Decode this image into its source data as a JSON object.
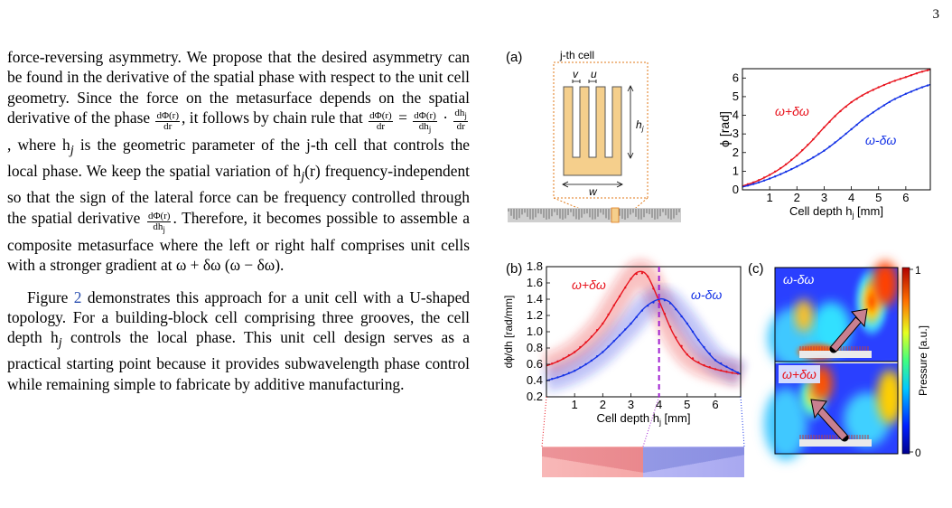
{
  "page": {
    "number": "3"
  },
  "body_text": {
    "p1_a": "force-reversing asymmetry. We propose that the desired asymmetry can be found in the derivative of the spatial phase with respect to the unit cell geometry. Since the force on the metasurface depends on the spatial derivative of the phase ",
    "p1_frac1_num": "dΦ(r)",
    "p1_frac1_den": "dr",
    "p1_b": ", it follows by chain rule that ",
    "p1_frac2_num": "dΦ(r)",
    "p1_frac2_den": "dr",
    "p1_c": " = ",
    "p1_frac3_num": "dΦ(r)",
    "p1_frac3_den": "dh",
    "p1_d": " · ",
    "p1_frac4_num": "dh",
    "p1_frac4_den": "dr",
    "p1_e": ", where h",
    "p1_f": " is the geometric parameter of the j-th cell that controls the local phase. We keep the spatial variation of h",
    "p1_g": "(r) frequency-independent so that the sign of the lateral force can be frequency controlled through the spatial derivative ",
    "p1_frac5_num": "dΦ(r)",
    "p1_frac5_den": "dh",
    "p1_h": ". Therefore, it becomes possible to assemble a composite metasurface where the left or right half comprises unit cells with a stronger gradient at ω + δω (ω − δω).",
    "p2_a": "Figure ",
    "p2_ref": "2",
    "p2_b": " demonstrates this approach for a unit cell with a U-shaped topology. For a building-block cell comprising three grooves, the cell depth h",
    "p2_c": " controls the local phase. This unit cell design serves as a practical starting point because it provides subwavelength phase control while remaining simple to fabricate by additive manufacturing."
  },
  "figure": {
    "panel_a": {
      "label": "(a)",
      "cell_title": "j-th cell",
      "dim_v": "v",
      "dim_u": "u",
      "dim_h": "h",
      "dim_h_sub": "j",
      "dim_w": "w"
    },
    "panel_b": {
      "label": "(b)",
      "divider_x": 4
    },
    "panel_c": {
      "label": "(c)",
      "top_label": "ω-δω",
      "bottom_label": "ω+δω",
      "colorbar_max": "1",
      "colorbar_min": "0",
      "colorbar_title": "Pressure [a.u.]"
    }
  },
  "chart_data": [
    {
      "type": "line",
      "title": "",
      "xlabel": "Cell depth h",
      "xlabel_sub": "j",
      "xlabel_unit": " [mm]",
      "ylabel": "ϕ [rad]",
      "xlim": [
        0,
        6.9
      ],
      "ylim": [
        0,
        6.5
      ],
      "xticks": [
        1,
        2,
        3,
        4,
        5,
        6
      ],
      "yticks": [
        0,
        1,
        2,
        3,
        4,
        5,
        6
      ],
      "grid": false,
      "series": [
        {
          "name": "ω+δω",
          "color": "#e8141e",
          "x": [
            0,
            0.5,
            1,
            1.5,
            2,
            2.5,
            3,
            3.5,
            4,
            4.5,
            5,
            5.5,
            6,
            6.5,
            6.9
          ],
          "y": [
            0.2,
            0.45,
            0.8,
            1.25,
            1.85,
            2.55,
            3.35,
            4.1,
            4.7,
            5.15,
            5.5,
            5.8,
            6.05,
            6.3,
            6.45
          ]
        },
        {
          "name": "ω-δω",
          "color": "#1432e6",
          "x": [
            0,
            0.5,
            1,
            1.5,
            2,
            2.5,
            3,
            3.5,
            4,
            4.5,
            5,
            5.5,
            6,
            6.5,
            6.9
          ],
          "y": [
            0.15,
            0.35,
            0.6,
            0.9,
            1.25,
            1.65,
            2.1,
            2.65,
            3.25,
            3.85,
            4.35,
            4.8,
            5.15,
            5.45,
            5.65
          ]
        }
      ]
    },
    {
      "type": "line",
      "title": "",
      "xlabel": "Cell depth h",
      "xlabel_sub": "j",
      "xlabel_unit": " [mm]",
      "ylabel": "dϕ/dh [rad/mm]",
      "xlim": [
        0,
        6.9
      ],
      "ylim": [
        0.2,
        1.8
      ],
      "xticks": [
        1,
        2,
        3,
        4,
        5,
        6
      ],
      "yticks": [
        0.2,
        0.4,
        0.6,
        0.8,
        1.0,
        1.2,
        1.4,
        1.6,
        1.8
      ],
      "grid": false,
      "series": [
        {
          "name": "ω+δω",
          "color": "#e8141e",
          "x": [
            0,
            0.5,
            1,
            1.5,
            2,
            2.5,
            3,
            3.3,
            3.6,
            4,
            4.5,
            5,
            5.5,
            6,
            6.5,
            6.9
          ],
          "y": [
            0.58,
            0.65,
            0.75,
            0.9,
            1.1,
            1.38,
            1.65,
            1.74,
            1.68,
            1.38,
            0.98,
            0.72,
            0.6,
            0.54,
            0.5,
            0.48
          ]
        },
        {
          "name": "ω-δω",
          "color": "#1432e6",
          "x": [
            0,
            0.5,
            1,
            1.5,
            2,
            2.5,
            3,
            3.5,
            4,
            4.3,
            4.5,
            5,
            5.5,
            6,
            6.5,
            6.9
          ],
          "y": [
            0.4,
            0.45,
            0.52,
            0.62,
            0.75,
            0.92,
            1.1,
            1.3,
            1.4,
            1.38,
            1.32,
            1.1,
            0.85,
            0.65,
            0.55,
            0.48
          ]
        }
      ]
    }
  ],
  "colors": {
    "red": "#e8141e",
    "blue": "#1432e6",
    "purple": "#a020d0",
    "cell_fill": "#f5cf8c",
    "cell_border": "#e07a1a",
    "link_blue": "#2a4fb0"
  },
  "icons": [
    "arrow-icon"
  ]
}
